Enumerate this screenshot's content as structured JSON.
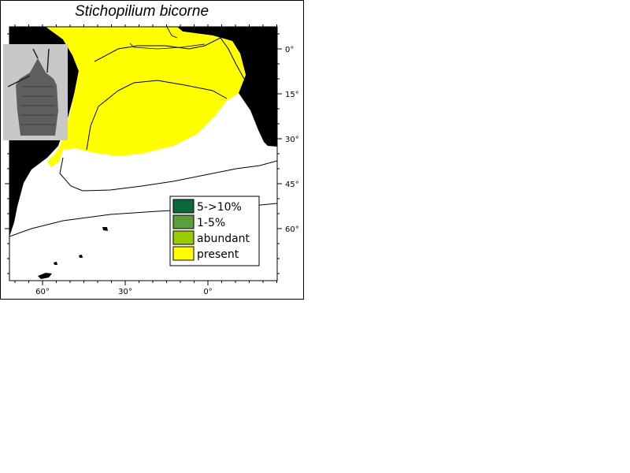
{
  "map": {
    "title": "Stichopilium bicorne",
    "lat_ticks": [
      {
        "label": "0°",
        "value": 0
      },
      {
        "label": "15°",
        "value": 15
      },
      {
        "label": "30°",
        "value": 30
      },
      {
        "label": "45°",
        "value": 45
      },
      {
        "label": "60°",
        "value": 60
      }
    ],
    "lon_ticks": [
      {
        "label": "60°",
        "value": 60
      },
      {
        "label": "30°",
        "value": 30
      },
      {
        "label": "0°",
        "value": 0
      }
    ],
    "legend": [
      {
        "label": "5->10%",
        "color": "#0b6a37"
      },
      {
        "label": "1-5%",
        "color": "#5a9f3c"
      },
      {
        "label": "abundant",
        "color": "#99cc00"
      },
      {
        "label": "present",
        "color": "#ffff00"
      }
    ],
    "colors": {
      "land": "#000000",
      "ocean": "#ffffff",
      "present": "#ffff00",
      "inset_background": "#c8c8c8"
    },
    "inset_image": "radiolarian-specimen-image"
  }
}
